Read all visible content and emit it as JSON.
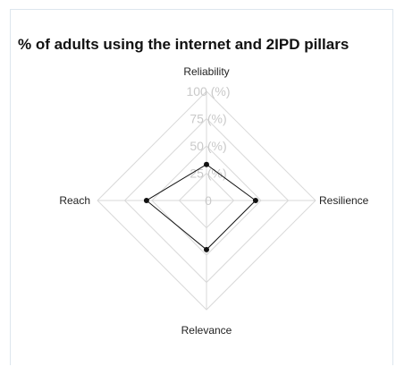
{
  "chart_data": {
    "type": "radar",
    "title": "% of adults using the internet and 2IPD pillars",
    "axes": [
      "Reliability",
      "Resilience",
      "Relevance",
      "Reach"
    ],
    "range": [
      0,
      100
    ],
    "tick_values": [
      0,
      25,
      50,
      75,
      100
    ],
    "tick_labels": [
      "0",
      "25 (%)",
      "50 (%)",
      "75 (%)",
      "100 (%)"
    ],
    "grid": true,
    "series": [
      {
        "values": [
          33,
          45,
          45,
          55
        ]
      }
    ],
    "colors": {
      "line": "#111111",
      "grid": "#d9d9d9",
      "tick": "#c9c9c9"
    }
  }
}
